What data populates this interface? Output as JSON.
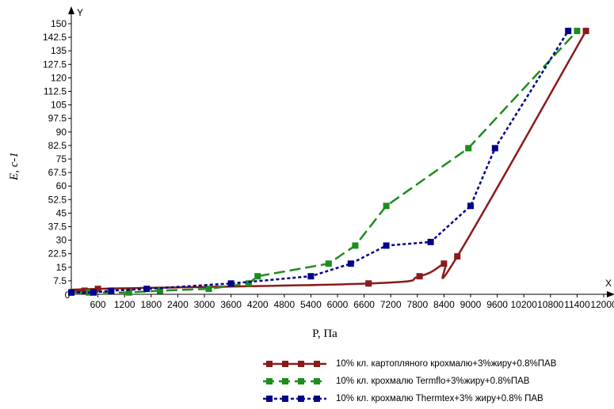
{
  "chart_data": {
    "type": "line",
    "xlabel": "P, Па",
    "ylabel": "E, с-1",
    "x_axis_letter": "X",
    "y_axis_letter": "Y",
    "xlim": [
      0,
      12000
    ],
    "ylim": [
      0,
      150
    ],
    "x_ticks": [
      "0",
      "600",
      "1200",
      "1800",
      "2400",
      "3000",
      "3600",
      "4200",
      "4800",
      "5400",
      "6000",
      "6600",
      "7200",
      "7800",
      "8400",
      "9000",
      "9600",
      "10200",
      "10800",
      "11400",
      "12000"
    ],
    "y_ticks": [
      "7.5",
      "15",
      "22.5",
      "30",
      "37.5",
      "45",
      "52.5",
      "60",
      "67.5",
      "75",
      "82.5",
      "90",
      "97.5",
      "105",
      "112.5",
      "120",
      "127.5",
      "135",
      "142.5",
      "150"
    ],
    "series": [
      {
        "name": "10% кл. картопляного крохмалю+3%жиру+0.8%ПАВ",
        "color": "#8b1a1a",
        "dash": "solid",
        "smooth": true,
        "points": [
          [
            0,
            1
          ],
          [
            300,
            2
          ],
          [
            600,
            3
          ],
          [
            6700,
            6
          ],
          [
            7850,
            10
          ],
          [
            8400,
            17
          ],
          [
            8700,
            21
          ],
          [
            11600,
            146
          ]
        ]
      },
      {
        "name": "10% кл. крохмалю Termflo+3%жиру+0.8%ПАВ",
        "color": "#1e8c1e",
        "dash": "dashed",
        "smooth": false,
        "points": [
          [
            0,
            1
          ],
          [
            400,
            1
          ],
          [
            1300,
            1
          ],
          [
            2000,
            2
          ],
          [
            3100,
            3
          ],
          [
            4000,
            6
          ],
          [
            4200,
            10
          ],
          [
            5800,
            17
          ],
          [
            6400,
            27
          ],
          [
            7100,
            49
          ],
          [
            8950,
            81
          ],
          [
            11400,
            146
          ]
        ]
      },
      {
        "name": "10% кл. крохмалю Thermtex+3% жиру+0.8% ПАВ",
        "color": "#00008b",
        "dash": "dotted",
        "smooth": false,
        "points": [
          [
            0,
            1
          ],
          [
            500,
            1
          ],
          [
            900,
            2
          ],
          [
            1700,
            3
          ],
          [
            3600,
            6
          ],
          [
            5400,
            10
          ],
          [
            6300,
            17
          ],
          [
            7100,
            27
          ],
          [
            8100,
            29
          ],
          [
            9000,
            49
          ],
          [
            9550,
            81
          ],
          [
            11200,
            146
          ]
        ]
      }
    ],
    "legend_position": "bottom-right",
    "grid": false
  }
}
